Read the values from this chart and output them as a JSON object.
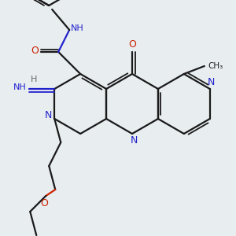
{
  "bg_color": "#e8edf0",
  "bond_color": "#1a1a1a",
  "nitrogen_color": "#2222cc",
  "oxygen_color": "#cc2200",
  "figsize": [
    3.0,
    3.0
  ],
  "dpi": 100,
  "lw": 1.6,
  "lw2": 1.3
}
